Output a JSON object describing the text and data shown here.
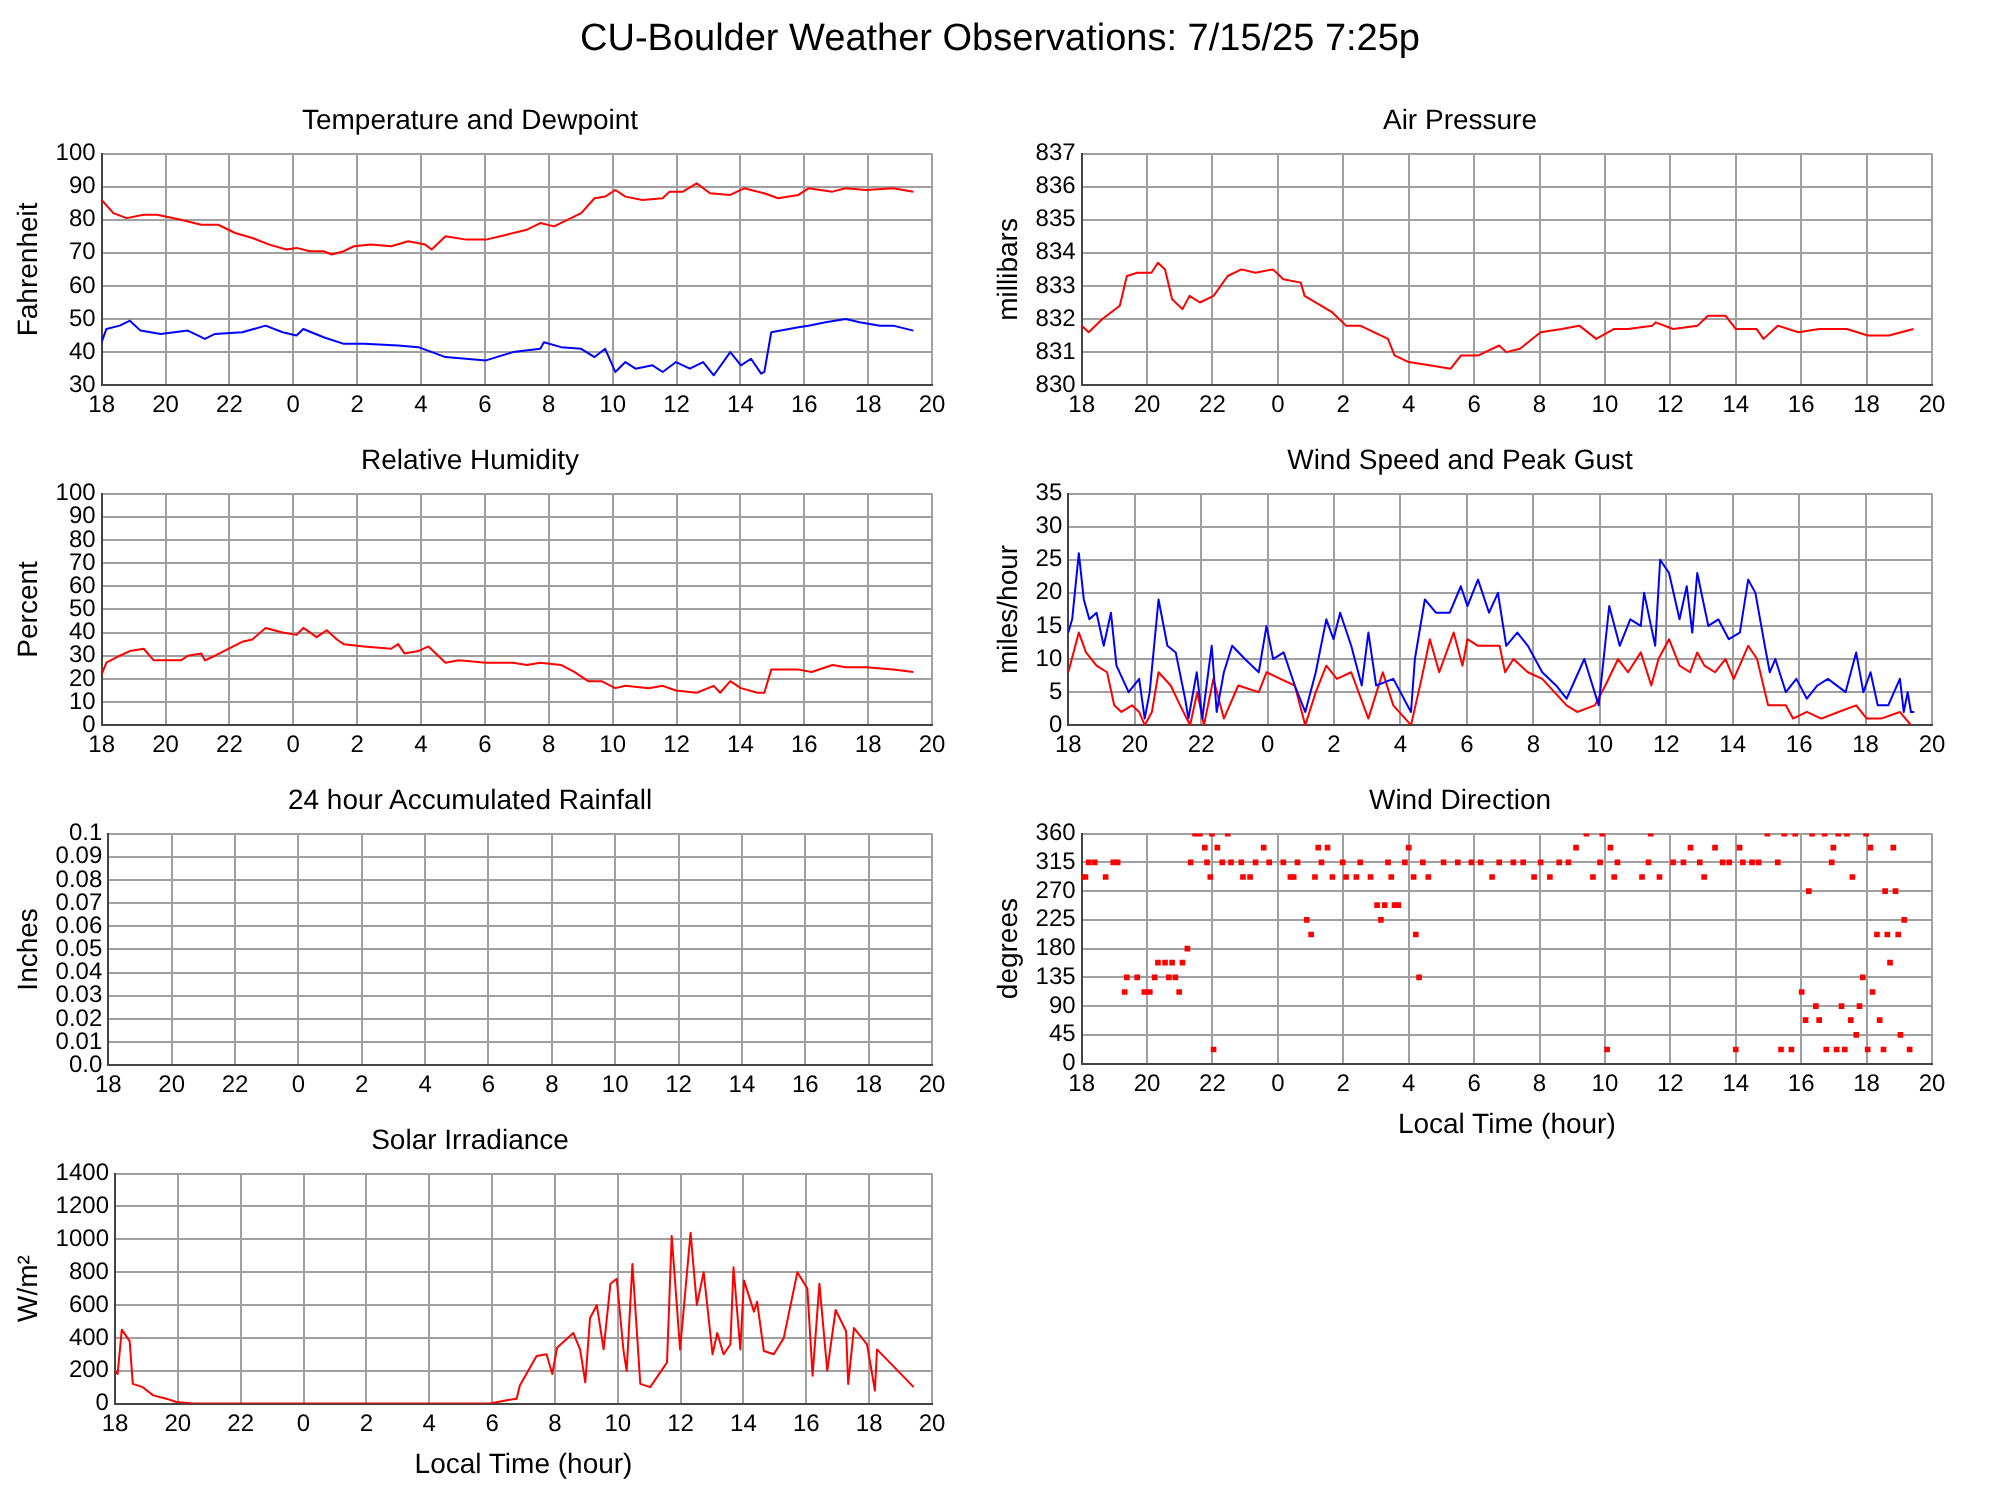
{
  "chart_data": [
    {
      "type": "other",
      "title": "CU-Boulder Weather Observations: 7/15/25 7:25p"
    },
    {
      "type": "line",
      "title": "Temperature and Dewpoint",
      "ylabel": "Fahrenheit",
      "xlim": [
        "--07-14T18:00",
        "--07-15T20:00"
      ],
      "xticks": [
        {
          "value": "--07-14T18:00",
          "label": "18"
        },
        {
          "value": "--07-14T20:00",
          "label": "20"
        },
        {
          "value": "--07-14T22:00",
          "label": "22"
        },
        {
          "value": "--07-15T00:00",
          "label": "0"
        },
        {
          "value": "--07-15T02:00",
          "label": "2"
        },
        {
          "value": "--07-15T04:00",
          "label": "4"
        },
        {
          "value": "--07-15T06:00",
          "label": "6"
        },
        {
          "value": "--07-15T08:00",
          "label": "8"
        },
        {
          "value": "--07-15T10:00",
          "label": "10"
        },
        {
          "value": "--07-15T12:00",
          "label": "12"
        },
        {
          "value": "--07-15T14:00",
          "label": "14"
        },
        {
          "value": "--07-15T16:00",
          "label": "16"
        },
        {
          "value": "--07-15T18:00",
          "label": "18"
        },
        {
          "value": "--07-15T20:00",
          "label": "20"
        }
      ],
      "ylim": [
        30,
        100
      ],
      "yticks": [
        30,
        40,
        50,
        60,
        70,
        80,
        90,
        100
      ],
      "grid": true,
      "legend": false,
      "series": [
        {
          "color": "#ff0000",
          "x": [
            "--07-14T18:00",
            "--07-14T18:22",
            "--07-14T18:47",
            "--07-14T19:19",
            "--07-14T19:44",
            "--07-14T20:29",
            "--07-14T21:07",
            "--07-14T21:39",
            "--07-14T22:11",
            "--07-14T22:43",
            "--07-14T23:15",
            "--07-14T23:47",
            "--07-15T00:06",
            "--07-15T00:31",
            "--07-15T00:57",
            "--07-15T01:12",
            "--07-15T01:35",
            "--07-15T01:54",
            "--07-15T02:26",
            "--07-15T03:04",
            "--07-15T03:36",
            "--07-15T04:08",
            "--07-15T04:20",
            "--07-15T04:46",
            "--07-15T05:25",
            "--07-15T06:02",
            "--07-15T06:41",
            "--07-15T07:19",
            "--07-15T07:44",
            "--07-15T08:10",
            "--07-15T08:35",
            "--07-15T09:01",
            "--07-15T09:26",
            "--07-15T09:46",
            "--07-15T10:05",
            "--07-15T10:24",
            "--07-15T10:56",
            "--07-15T11:34",
            "--07-15T11:47",
            "--07-15T12:12",
            "--07-15T12:38",
            "--07-15T13:03",
            "--07-15T13:41",
            "--07-15T14:07",
            "--07-15T14:45",
            "--07-15T15:11",
            "--07-15T15:49",
            "--07-15T16:08",
            "--07-15T16:53",
            "--07-15T17:18",
            "--07-15T17:56",
            "--07-15T18:47",
            "--07-15T19:25"
          ],
          "values": [
            86,
            82,
            80.5,
            81.5,
            81.5,
            80,
            78.5,
            78.5,
            76,
            74.5,
            72.5,
            71,
            71.5,
            70.5,
            70.5,
            69.5,
            70.5,
            72,
            72.5,
            72,
            73.5,
            72.5,
            71,
            75,
            74,
            74,
            75.5,
            77,
            79,
            78,
            80,
            82,
            86.5,
            87,
            89,
            87,
            86,
            86.5,
            88.5,
            88.5,
            91,
            88,
            87.5,
            89.5,
            88,
            86.5,
            87.5,
            89.5,
            88.5,
            89.5,
            89,
            89.5,
            88.5
          ]
        },
        {
          "color": "#0000ff",
          "x": [
            "--07-14T18:00",
            "--07-14T18:09",
            "--07-14T18:34",
            "--07-14T18:53",
            "--07-14T19:13",
            "--07-14T19:51",
            "--07-14T20:42",
            "--07-14T21:14",
            "--07-14T21:33",
            "--07-14T22:24",
            "--07-14T23:08",
            "--07-14T23:40",
            "--07-15T00:06",
            "--07-15T00:19",
            "--07-15T00:57",
            "--07-15T01:35",
            "--07-15T02:13",
            "--07-15T03:17",
            "--07-15T03:55",
            "--07-15T04:46",
            "--07-15T06:02",
            "--07-15T06:53",
            "--07-15T07:44",
            "--07-15T07:51",
            "--07-15T08:23",
            "--07-15T09:01",
            "--07-15T09:26",
            "--07-15T09:46",
            "--07-15T10:05",
            "--07-15T10:24",
            "--07-15T10:43",
            "--07-15T11:15",
            "--07-15T11:34",
            "--07-15T11:59",
            "--07-15T12:25",
            "--07-15T12:50",
            "--07-15T13:10",
            "--07-15T13:41",
            "--07-15T14:01",
            "--07-15T14:20",
            "--07-15T14:39",
            "--07-15T14:45",
            "--07-15T14:58",
            "--07-15T15:49",
            "--07-15T16:08",
            "--07-15T16:40",
            "--07-15T17:18",
            "--07-15T17:44",
            "--07-15T18:22",
            "--07-15T18:47",
            "--07-15T19:25"
          ],
          "values": [
            43,
            47,
            48,
            49.5,
            46.5,
            45.5,
            46.5,
            44,
            45.5,
            46,
            48,
            46,
            45,
            47,
            44.5,
            42.5,
            42.5,
            42,
            41.5,
            38.5,
            37.5,
            40,
            41,
            43,
            41.5,
            41,
            38.5,
            41,
            34,
            37,
            35,
            36,
            34,
            37,
            35,
            37,
            33,
            40,
            36,
            38,
            33.5,
            34,
            46,
            47.5,
            48,
            49,
            50,
            49,
            48,
            48,
            46.5
          ]
        }
      ]
    },
    {
      "type": "line",
      "title": "Air Pressure",
      "ylabel": "millibars",
      "xlim": [
        "--07-14T18:00",
        "--07-15T20:00"
      ],
      "xticks": [
        {
          "value": "--07-14T18:00",
          "label": "18"
        },
        {
          "value": "--07-14T20:00",
          "label": "20"
        },
        {
          "value": "--07-14T22:00",
          "label": "22"
        },
        {
          "value": "--07-15T00:00",
          "label": "0"
        },
        {
          "value": "--07-15T02:00",
          "label": "2"
        },
        {
          "value": "--07-15T04:00",
          "label": "4"
        },
        {
          "value": "--07-15T06:00",
          "label": "6"
        },
        {
          "value": "--07-15T08:00",
          "label": "8"
        },
        {
          "value": "--07-15T10:00",
          "label": "10"
        },
        {
          "value": "--07-15T12:00",
          "label": "12"
        },
        {
          "value": "--07-15T14:00",
          "label": "14"
        },
        {
          "value": "--07-15T16:00",
          "label": "16"
        },
        {
          "value": "--07-15T18:00",
          "label": "18"
        },
        {
          "value": "--07-15T20:00",
          "label": "20"
        }
      ],
      "ylim": [
        830,
        837
      ],
      "yticks": [
        830,
        831,
        832,
        833,
        834,
        835,
        836,
        837
      ],
      "grid": true,
      "legend": false,
      "series": [
        {
          "color": "#ff0000",
          "x": [
            "--07-14T18:00",
            "--07-14T18:13",
            "--07-14T18:38",
            "--07-14T19:10",
            "--07-14T19:23",
            "--07-14T19:42",
            "--07-14T20:08",
            "--07-14T20:20",
            "--07-14T20:33",
            "--07-14T20:46",
            "--07-14T21:05",
            "--07-14T21:18",
            "--07-14T21:37",
            "--07-14T22:02",
            "--07-14T22:28",
            "--07-14T22:53",
            "--07-14T23:19",
            "--07-14T23:51",
            "--07-15T00:10",
            "--07-15T00:42",
            "--07-15T00:49",
            "--07-15T01:40",
            "--07-15T02:05",
            "--07-15T02:31",
            "--07-15T03:22",
            "--07-15T03:34",
            "--07-15T04:00",
            "--07-15T04:38",
            "--07-15T05:17",
            "--07-15T05:36",
            "--07-15T06:08",
            "--07-15T06:46",
            "--07-15T06:59",
            "--07-15T07:24",
            "--07-15T08:02",
            "--07-15T08:41",
            "--07-15T09:13",
            "--07-15T09:44",
            "--07-15T10:17",
            "--07-15T10:42",
            "--07-15T11:27",
            "--07-15T11:33",
            "--07-15T12:05",
            "--07-15T12:50",
            "--07-15T13:09",
            "--07-15T13:41",
            "--07-15T14:00",
            "--07-15T14:38",
            "--07-15T14:51",
            "--07-15T15:17",
            "--07-15T15:55",
            "--07-15T16:33",
            "--07-15T17:24",
            "--07-15T18:02",
            "--07-15T18:41",
            "--07-15T19:26"
          ],
          "values": [
            831.8,
            831.6,
            832,
            832.4,
            833.3,
            833.4,
            833.4,
            833.7,
            833.5,
            832.6,
            832.3,
            832.7,
            832.5,
            832.7,
            833.3,
            833.5,
            833.4,
            833.5,
            833.2,
            833.1,
            832.7,
            832.2,
            831.8,
            831.8,
            831.4,
            830.9,
            830.7,
            830.6,
            830.5,
            830.9,
            830.9,
            831.2,
            831,
            831.1,
            831.6,
            831.7,
            831.8,
            831.4,
            831.7,
            831.7,
            831.8,
            831.9,
            831.7,
            831.8,
            832.1,
            832.1,
            831.7,
            831.7,
            831.4,
            831.8,
            831.6,
            831.7,
            831.7,
            831.5,
            831.5,
            831.7
          ]
        }
      ]
    },
    {
      "type": "line",
      "title": "Relative Humidity",
      "ylabel": "Percent",
      "xlim": [
        "--07-14T18:00",
        "--07-15T20:00"
      ],
      "xticks": [
        {
          "value": "--07-14T18:00",
          "label": "18"
        },
        {
          "value": "--07-14T20:00",
          "label": "20"
        },
        {
          "value": "--07-14T22:00",
          "label": "22"
        },
        {
          "value": "--07-15T00:00",
          "label": "0"
        },
        {
          "value": "--07-15T02:00",
          "label": "2"
        },
        {
          "value": "--07-15T04:00",
          "label": "4"
        },
        {
          "value": "--07-15T06:00",
          "label": "6"
        },
        {
          "value": "--07-15T08:00",
          "label": "8"
        },
        {
          "value": "--07-15T10:00",
          "label": "10"
        },
        {
          "value": "--07-15T12:00",
          "label": "12"
        },
        {
          "value": "--07-15T14:00",
          "label": "14"
        },
        {
          "value": "--07-15T16:00",
          "label": "16"
        },
        {
          "value": "--07-15T18:00",
          "label": "18"
        },
        {
          "value": "--07-15T20:00",
          "label": "20"
        }
      ],
      "ylim": [
        0,
        100
      ],
      "yticks": [
        0,
        10,
        20,
        30,
        40,
        50,
        60,
        70,
        80,
        90,
        100
      ],
      "grid": true,
      "legend": false,
      "series": [
        {
          "color": "#ff0000",
          "x": [
            "--07-14T18:00",
            "--07-14T18:09",
            "--07-14T18:34",
            "--07-14T18:53",
            "--07-14T19:19",
            "--07-14T19:38",
            "--07-14T20:29",
            "--07-14T20:42",
            "--07-14T21:07",
            "--07-14T21:14",
            "--07-14T21:33",
            "--07-14T21:58",
            "--07-14T22:24",
            "--07-14T22:43",
            "--07-14T23:08",
            "--07-14T23:40",
            "--07-15T00:06",
            "--07-15T00:19",
            "--07-15T00:44",
            "--07-15T01:03",
            "--07-15T01:22",
            "--07-15T01:35",
            "--07-15T02:13",
            "--07-15T03:04",
            "--07-15T03:17",
            "--07-15T03:29",
            "--07-15T03:55",
            "--07-15T04:14",
            "--07-15T04:46",
            "--07-15T05:11",
            "--07-15T06:02",
            "--07-15T06:53",
            "--07-15T07:19",
            "--07-15T07:44",
            "--07-15T08:23",
            "--07-15T08:48",
            "--07-15T09:14",
            "--07-15T09:39",
            "--07-15T10:05",
            "--07-15T10:24",
            "--07-15T11:08",
            "--07-15T11:34",
            "--07-15T11:59",
            "--07-15T12:38",
            "--07-15T13:10",
            "--07-15T13:22",
            "--07-15T13:41",
            "--07-15T14:01",
            "--07-15T14:32",
            "--07-15T14:45",
            "--07-15T14:58",
            "--07-15T15:49",
            "--07-15T16:14",
            "--07-15T16:53",
            "--07-15T17:18",
            "--07-15T17:56",
            "--07-15T18:47",
            "--07-15T19:25"
          ],
          "values": [
            22,
            27,
            30,
            32,
            33,
            28,
            28,
            30,
            31,
            28,
            30,
            33,
            36,
            37,
            42,
            40,
            39,
            42,
            38,
            41,
            37,
            35,
            34,
            33,
            35,
            31,
            32,
            34,
            27,
            28,
            27,
            27,
            26,
            27,
            26,
            23,
            19,
            19,
            16,
            17,
            16,
            17,
            15,
            14,
            17,
            14,
            19,
            16,
            14,
            14,
            24,
            24,
            23,
            26,
            25,
            25,
            24,
            23
          ]
        }
      ]
    },
    {
      "type": "line",
      "title": "Wind Speed and Peak Gust",
      "ylabel": "miles/hour",
      "xlim": [
        "--07-14T18:00",
        "--07-15T20:00"
      ],
      "xticks": [
        {
          "value": "--07-14T18:00",
          "label": "18"
        },
        {
          "value": "--07-14T20:00",
          "label": "20"
        },
        {
          "value": "--07-14T22:00",
          "label": "22"
        },
        {
          "value": "--07-15T00:00",
          "label": "0"
        },
        {
          "value": "--07-15T02:00",
          "label": "2"
        },
        {
          "value": "--07-15T04:00",
          "label": "4"
        },
        {
          "value": "--07-15T06:00",
          "label": "6"
        },
        {
          "value": "--07-15T08:00",
          "label": "8"
        },
        {
          "value": "--07-15T10:00",
          "label": "10"
        },
        {
          "value": "--07-15T12:00",
          "label": "12"
        },
        {
          "value": "--07-15T14:00",
          "label": "14"
        },
        {
          "value": "--07-15T16:00",
          "label": "16"
        },
        {
          "value": "--07-15T18:00",
          "label": "18"
        },
        {
          "value": "--07-15T20:00",
          "label": "20"
        }
      ],
      "ylim": [
        0,
        35
      ],
      "yticks": [
        0,
        5,
        10,
        15,
        20,
        25,
        30,
        35
      ],
      "grid": true,
      "legend": false,
      "series": [
        {
          "color": "#0000ff",
          "x": [
            "--07-14T18:00",
            "--07-14T18:07",
            "--07-14T18:19",
            "--07-14T18:28",
            "--07-14T18:38",
            "--07-14T18:51",
            "--07-14T19:04",
            "--07-14T19:17",
            "--07-14T19:27",
            "--07-14T19:49",
            "--07-14T20:08",
            "--07-14T20:18",
            "--07-14T20:27",
            "--07-14T20:43",
            "--07-14T20:59",
            "--07-14T21:14",
            "--07-14T21:31",
            "--07-14T21:37",
            "--07-14T21:52",
            "--07-14T22:02",
            "--07-14T22:19",
            "--07-14T22:28",
            "--07-14T22:41",
            "--07-14T22:56",
            "--07-14T23:19",
            "--07-14T23:44",
            "--07-14T23:58",
            "--07-15T00:10",
            "--07-15T00:29",
            "--07-15T00:49",
            "--07-15T01:08",
            "--07-15T01:27",
            "--07-15T01:46",
            "--07-15T01:59",
            "--07-15T02:11",
            "--07-15T02:31",
            "--07-15T02:50",
            "--07-15T03:02",
            "--07-15T03:16",
            "--07-15T03:47",
            "--07-15T04:19",
            "--07-15T04:26",
            "--07-15T04:44",
            "--07-15T05:04",
            "--07-15T05:29",
            "--07-15T05:49",
            "--07-15T06:01",
            "--07-15T06:20",
            "--07-15T06:40",
            "--07-15T06:56",
            "--07-15T07:11",
            "--07-15T07:31",
            "--07-15T07:50",
            "--07-15T08:16",
            "--07-15T08:41",
            "--07-15T09:00",
            "--07-15T09:32",
            "--07-15T09:58",
            "--07-15T10:17",
            "--07-15T10:36",
            "--07-15T10:55",
            "--07-15T11:14",
            "--07-15T11:20",
            "--07-15T11:40",
            "--07-15T11:49",
            "--07-15T12:05",
            "--07-15T12:24",
            "--07-15T12:37",
            "--07-15T12:47",
            "--07-15T12:56",
            "--07-15T13:16",
            "--07-15T13:34",
            "--07-15T13:53",
            "--07-15T14:13",
            "--07-15T14:28",
            "--07-15T14:41",
            "--07-15T14:58",
            "--07-15T15:07",
            "--07-15T15:17",
            "--07-15T15:36",
            "--07-15T15:55",
            "--07-15T16:14",
            "--07-15T16:33",
            "--07-15T16:52",
            "--07-15T17:24",
            "--07-15T17:43",
            "--07-15T17:56",
            "--07-15T18:09",
            "--07-15T18:22",
            "--07-15T18:41",
            "--07-15T19:02",
            "--07-15T19:09",
            "--07-15T19:16",
            "--07-15T19:22",
            "--07-15T19:28"
          ],
          "values": [
            14,
            16,
            26,
            19,
            16,
            17,
            12,
            17,
            9,
            5,
            7,
            1,
            5,
            19,
            12,
            11,
            4,
            1,
            8,
            1,
            12,
            2,
            8,
            12,
            10,
            8,
            15,
            10,
            11,
            6,
            2,
            8,
            16,
            13,
            17,
            12,
            6,
            14,
            6,
            7,
            2,
            10,
            19,
            17,
            17,
            21,
            18,
            22,
            17,
            20,
            12,
            14,
            12,
            8,
            6,
            4,
            10,
            3,
            18,
            12,
            16,
            15,
            20,
            12,
            25,
            23,
            16,
            21,
            14,
            23,
            15,
            16,
            13,
            14,
            22,
            20,
            12,
            8,
            10,
            5,
            7,
            4,
            6,
            7,
            5,
            11,
            5,
            8,
            3,
            3,
            7,
            2,
            5,
            2,
            2
          ]
        },
        {
          "color": "#ff0000",
          "x": [
            "--07-14T18:00",
            "--07-14T18:19",
            "--07-14T18:32",
            "--07-14T18:51",
            "--07-14T19:10",
            "--07-14T19:23",
            "--07-14T19:36",
            "--07-14T19:55",
            "--07-14T20:08",
            "--07-14T20:18",
            "--07-14T20:31",
            "--07-14T20:43",
            "--07-14T21:05",
            "--07-14T21:22",
            "--07-14T21:40",
            "--07-14T21:53",
            "--07-14T22:05",
            "--07-14T22:22",
            "--07-14T22:41",
            "--07-14T23:07",
            "--07-14T23:44",
            "--07-14T23:58",
            "--07-15T00:23",
            "--07-15T00:49",
            "--07-15T01:08",
            "--07-15T01:27",
            "--07-15T01:46",
            "--07-15T02:05",
            "--07-15T02:31",
            "--07-15T03:02",
            "--07-15T03:28",
            "--07-15T03:47",
            "--07-15T04:19",
            "--07-15T04:38",
            "--07-15T04:53",
            "--07-15T05:10",
            "--07-15T05:36",
            "--07-15T05:52",
            "--07-15T06:01",
            "--07-15T06:20",
            "--07-15T06:59",
            "--07-15T07:09",
            "--07-15T07:24",
            "--07-15T07:50",
            "--07-15T08:16",
            "--07-15T09:00",
            "--07-15T09:19",
            "--07-15T09:51",
            "--07-15T10:10",
            "--07-15T10:33",
            "--07-15T10:51",
            "--07-15T11:14",
            "--07-15T11:33",
            "--07-15T11:46",
            "--07-15T12:05",
            "--07-15T12:24",
            "--07-15T12:43",
            "--07-15T12:56",
            "--07-15T13:09",
            "--07-15T13:28",
            "--07-15T13:47",
            "--07-15T14:02",
            "--07-15T14:28",
            "--07-15T14:44",
            "--07-15T15:04",
            "--07-15T15:36",
            "--07-15T15:49",
            "--07-15T16:14",
            "--07-15T16:40",
            "--07-15T17:11",
            "--07-15T17:43",
            "--07-15T18:02",
            "--07-15T18:28",
            "--07-15T19:02",
            "--07-15T19:22"
          ],
          "values": [
            8,
            14,
            11,
            9,
            8,
            3,
            2,
            3,
            2,
            0,
            2,
            8,
            6,
            3,
            0,
            5,
            0,
            7,
            1,
            6,
            5,
            8,
            7,
            6,
            0,
            5,
            9,
            7,
            8,
            1,
            8,
            3,
            0,
            7,
            13,
            8,
            14,
            9,
            13,
            12,
            12,
            8,
            10,
            8,
            7,
            3,
            2,
            3,
            6,
            10,
            8,
            11,
            6,
            10,
            13,
            9,
            8,
            11,
            9,
            8,
            10,
            7,
            12,
            10,
            3,
            3,
            1,
            2,
            1,
            2,
            3,
            1,
            1,
            2,
            0
          ]
        }
      ]
    },
    {
      "type": "line",
      "title": "24 hour Accumulated Rainfall",
      "ylabel": "Inches",
      "xlim": [
        "--07-14T18:00",
        "--07-15T20:00"
      ],
      "xticks": [
        {
          "value": "--07-14T18:00",
          "label": "18"
        },
        {
          "value": "--07-14T20:00",
          "label": "20"
        },
        {
          "value": "--07-14T22:00",
          "label": "22"
        },
        {
          "value": "--07-15T00:00",
          "label": "0"
        },
        {
          "value": "--07-15T02:00",
          "label": "2"
        },
        {
          "value": "--07-15T04:00",
          "label": "4"
        },
        {
          "value": "--07-15T06:00",
          "label": "6"
        },
        {
          "value": "--07-15T08:00",
          "label": "8"
        },
        {
          "value": "--07-15T10:00",
          "label": "10"
        },
        {
          "value": "--07-15T12:00",
          "label": "12"
        },
        {
          "value": "--07-15T14:00",
          "label": "14"
        },
        {
          "value": "--07-15T16:00",
          "label": "16"
        },
        {
          "value": "--07-15T18:00",
          "label": "18"
        },
        {
          "value": "--07-15T20:00",
          "label": "20"
        }
      ],
      "ylim": [
        0,
        0.1
      ],
      "yticks": [
        {
          "value": 0,
          "label": "0.0"
        },
        0.01,
        0.02,
        0.03,
        0.04,
        0.05,
        0.06,
        0.07,
        0.08,
        0.09,
        0.1
      ],
      "grid": true,
      "legend": false
    },
    {
      "type": "scatter",
      "title": "Wind Direction",
      "ylabel": "degrees",
      "xlabel": "Local Time (hour)",
      "xlim": [
        "--07-14T18:00",
        "--07-15T20:00"
      ],
      "xticks": [
        {
          "value": "--07-14T18:00",
          "label": "18"
        },
        {
          "value": "--07-14T20:00",
          "label": "20"
        },
        {
          "value": "--07-14T22:00",
          "label": "22"
        },
        {
          "value": "--07-15T00:00",
          "label": "0"
        },
        {
          "value": "--07-15T02:00",
          "label": "2"
        },
        {
          "value": "--07-15T04:00",
          "label": "4"
        },
        {
          "value": "--07-15T06:00",
          "label": "6"
        },
        {
          "value": "--07-15T08:00",
          "label": "8"
        },
        {
          "value": "--07-15T10:00",
          "label": "10"
        },
        {
          "value": "--07-15T12:00",
          "label": "12"
        },
        {
          "value": "--07-15T14:00",
          "label": "14"
        },
        {
          "value": "--07-15T16:00",
          "label": "16"
        },
        {
          "value": "--07-15T18:00",
          "label": "18"
        },
        {
          "value": "--07-15T20:00",
          "label": "20"
        }
      ],
      "ylim": [
        0,
        360
      ],
      "yticks": [
        0,
        45,
        90,
        135,
        180,
        225,
        270,
        315,
        360
      ],
      "grid": true,
      "legend": false,
      "marker": "square",
      "series": [
        {
          "color": "#ff0000",
          "x": [
            "--07-14T18:00",
            "--07-14T18:07",
            "--07-14T18:13",
            "--07-14T18:24",
            "--07-14T18:44",
            "--07-14T18:58",
            "--07-14T19:06",
            "--07-14T19:19",
            "--07-14T19:23",
            "--07-14T19:42",
            "--07-14T19:55",
            "--07-14T20:05",
            "--07-14T20:14",
            "--07-14T20:20",
            "--07-14T20:33",
            "--07-14T20:40",
            "--07-14T20:46",
            "--07-14T20:52",
            "--07-14T20:59",
            "--07-14T21:05",
            "--07-14T21:14",
            "--07-14T21:20",
            "--07-14T21:28",
            "--07-14T21:37",
            "--07-14T21:46",
            "--07-14T21:50",
            "--07-14T21:56",
            "--07-14T21:59",
            "--07-14T22:02",
            "--07-14T22:09",
            "--07-14T22:18",
            "--07-14T22:28",
            "--07-14T22:34",
            "--07-14T22:53",
            "--07-14T22:56",
            "--07-14T23:09",
            "--07-14T23:19",
            "--07-14T23:34",
            "--07-14T23:44",
            "--07-15T00:10",
            "--07-15T00:23",
            "--07-15T00:29",
            "--07-15T00:36",
            "--07-15T00:53",
            "--07-15T01:01",
            "--07-15T01:08",
            "--07-15T01:14",
            "--07-15T01:20",
            "--07-15T01:31",
            "--07-15T01:40",
            "--07-15T01:59",
            "--07-15T02:05",
            "--07-15T02:24",
            "--07-15T02:31",
            "--07-15T02:50",
            "--07-15T03:02",
            "--07-15T03:09",
            "--07-15T03:16",
            "--07-15T03:22",
            "--07-15T03:28",
            "--07-15T03:34",
            "--07-15T03:41",
            "--07-15T03:53",
            "--07-15T04:00",
            "--07-15T04:09",
            "--07-15T04:13",
            "--07-15T04:19",
            "--07-15T04:26",
            "--07-15T04:36",
            "--07-15T05:04",
            "--07-15T05:30",
            "--07-15T05:55",
            "--07-15T06:12",
            "--07-15T06:33",
            "--07-15T06:46",
            "--07-15T07:12",
            "--07-15T07:30",
            "--07-15T07:50",
            "--07-15T08:02",
            "--07-15T08:19",
            "--07-15T08:36",
            "--07-15T08:53",
            "--07-15T09:07",
            "--07-15T09:26",
            "--07-15T09:38",
            "--07-15T09:51",
            "--07-15T09:55",
            "--07-15T10:04",
            "--07-15T10:10",
            "--07-15T10:17",
            "--07-15T10:23",
            "--07-15T11:08",
            "--07-15T11:20",
            "--07-15T11:24",
            "--07-15T11:40",
            "--07-15T12:05",
            "--07-15T12:24",
            "--07-15T12:37",
            "--07-15T12:54",
            "--07-15T13:02",
            "--07-15T13:22",
            "--07-15T13:36",
            "--07-15T13:48",
            "--07-15T14:00",
            "--07-15T14:07",
            "--07-15T14:13",
            "--07-15T14:30",
            "--07-15T14:42",
            "--07-15T14:58",
            "--07-15T15:17",
            "--07-15T15:23",
            "--07-15T15:29",
            "--07-15T15:42",
            "--07-15T15:49",
            "--07-15T16:01",
            "--07-15T16:08",
            "--07-15T16:14",
            "--07-15T16:20",
            "--07-15T16:27",
            "--07-15T16:33",
            "--07-15T16:43",
            "--07-15T16:46",
            "--07-15T16:56",
            "--07-15T16:59",
            "--07-15T17:05",
            "--07-15T17:08",
            "--07-15T17:14",
            "--07-15T17:20",
            "--07-15T17:24",
            "--07-15T17:31",
            "--07-15T17:34",
            "--07-15T17:41",
            "--07-15T17:47",
            "--07-15T17:53",
            "--07-15T17:59",
            "--07-15T18:02",
            "--07-15T18:07",
            "--07-15T18:11",
            "--07-15T18:19",
            "--07-15T18:24",
            "--07-15T18:31",
            "--07-15T18:34",
            "--07-15T18:38",
            "--07-15T18:43",
            "--07-15T18:49",
            "--07-15T18:53",
            "--07-15T18:58",
            "--07-15T19:02",
            "--07-15T19:09",
            "--07-15T19:19"
          ],
          "values": [
            292,
            292,
            315,
            315,
            292,
            315,
            315,
            112,
            135,
            135,
            112,
            112,
            135,
            158,
            158,
            135,
            158,
            135,
            112,
            158,
            180,
            315,
            360,
            360,
            338,
            315,
            292,
            360,
            22,
            338,
            315,
            360,
            315,
            315,
            292,
            292,
            315,
            338,
            315,
            315,
            292,
            292,
            315,
            225,
            202,
            292,
            338,
            315,
            338,
            292,
            315,
            292,
            292,
            315,
            292,
            248,
            225,
            248,
            315,
            292,
            248,
            248,
            315,
            338,
            292,
            202,
            135,
            315,
            292,
            315,
            315,
            315,
            315,
            292,
            315,
            315,
            315,
            292,
            315,
            292,
            315,
            315,
            338,
            360,
            292,
            315,
            360,
            22,
            338,
            292,
            315,
            292,
            315,
            360,
            292,
            315,
            315,
            338,
            315,
            292,
            338,
            315,
            315,
            22,
            338,
            315,
            315,
            315,
            360,
            315,
            22,
            360,
            22,
            360,
            112,
            68,
            270,
            360,
            90,
            68,
            360,
            22,
            315,
            338,
            22,
            360,
            90,
            22,
            360,
            68,
            292,
            45,
            90,
            135,
            360,
            22,
            338,
            112,
            202,
            68,
            22,
            270,
            202,
            158,
            338,
            270,
            202,
            45,
            225,
            22
          ]
        }
      ]
    },
    {
      "type": "line",
      "title": "Solar Irradiance",
      "ylabel": "W/m²",
      "xlabel": "Local Time (hour)",
      "xlim": [
        "--07-14T18:00",
        "--07-15T20:00"
      ],
      "xticks": [
        {
          "value": "--07-14T18:00",
          "label": "18"
        },
        {
          "value": "--07-14T20:00",
          "label": "20"
        },
        {
          "value": "--07-14T22:00",
          "label": "22"
        },
        {
          "value": "--07-15T00:00",
          "label": "0"
        },
        {
          "value": "--07-15T02:00",
          "label": "2"
        },
        {
          "value": "--07-15T04:00",
          "label": "4"
        },
        {
          "value": "--07-15T06:00",
          "label": "6"
        },
        {
          "value": "--07-15T08:00",
          "label": "8"
        },
        {
          "value": "--07-15T10:00",
          "label": "10"
        },
        {
          "value": "--07-15T12:00",
          "label": "12"
        },
        {
          "value": "--07-15T14:00",
          "label": "14"
        },
        {
          "value": "--07-15T16:00",
          "label": "16"
        },
        {
          "value": "--07-15T18:00",
          "label": "18"
        },
        {
          "value": "--07-15T20:00",
          "label": "20"
        }
      ],
      "ylim": [
        0,
        1400
      ],
      "yticks": [
        0,
        200,
        400,
        600,
        800,
        1000,
        1200,
        1400
      ],
      "grid": true,
      "legend": false,
      "series": [
        {
          "color": "#ff0000",
          "x": [
            "--07-14T18:00",
            "--07-14T18:05",
            "--07-14T18:13",
            "--07-14T18:28",
            "--07-14T18:34",
            "--07-14T18:53",
            "--07-14T19:13",
            "--07-14T19:38",
            "--07-14T19:57",
            "--07-14T20:29",
            "--07-15T05:56",
            "--07-15T06:28",
            "--07-15T06:47",
            "--07-15T06:53",
            "--07-15T07:25",
            "--07-15T07:44",
            "--07-15T07:55",
            "--07-15T08:04",
            "--07-15T08:35",
            "--07-15T08:48",
            "--07-15T08:58",
            "--07-15T09:07",
            "--07-15T09:20",
            "--07-15T09:33",
            "--07-15T09:46",
            "--07-15T09:58",
            "--07-15T10:11",
            "--07-15T10:17",
            "--07-15T10:28",
            "--07-15T10:43",
            "--07-15T11:02",
            "--07-15T11:21",
            "--07-15T11:34",
            "--07-15T11:43",
            "--07-15T11:59",
            "--07-15T12:19",
            "--07-15T12:31",
            "--07-15T12:44",
            "--07-15T13:01",
            "--07-15T13:10",
            "--07-15T13:22",
            "--07-15T13:35",
            "--07-15T13:41",
            "--07-15T13:54",
            "--07-15T14:01",
            "--07-15T14:20",
            "--07-15T14:26",
            "--07-15T14:39",
            "--07-15T14:58",
            "--07-15T15:17",
            "--07-15T15:30",
            "--07-15T15:43",
            "--07-15T16:02",
            "--07-15T16:12",
            "--07-15T16:25",
            "--07-15T16:40",
            "--07-15T16:56",
            "--07-15T17:16",
            "--07-15T17:20",
            "--07-15T17:31",
            "--07-15T17:56",
            "--07-15T18:11",
            "--07-15T18:15",
            "--07-15T19:25"
          ],
          "values": [
            200,
            180,
            450,
            380,
            120,
            100,
            50,
            30,
            10,
            0,
            0,
            20,
            30,
            110,
            290,
            300,
            180,
            340,
            430,
            330,
            130,
            520,
            600,
            330,
            730,
            760,
            320,
            200,
            850,
            120,
            100,
            190,
            250,
            1020,
            330,
            1040,
            600,
            800,
            300,
            430,
            300,
            360,
            830,
            330,
            750,
            560,
            620,
            320,
            300,
            400,
            600,
            800,
            700,
            170,
            730,
            200,
            570,
            440,
            120,
            460,
            360,
            80,
            330,
            100
          ]
        }
      ]
    }
  ]
}
